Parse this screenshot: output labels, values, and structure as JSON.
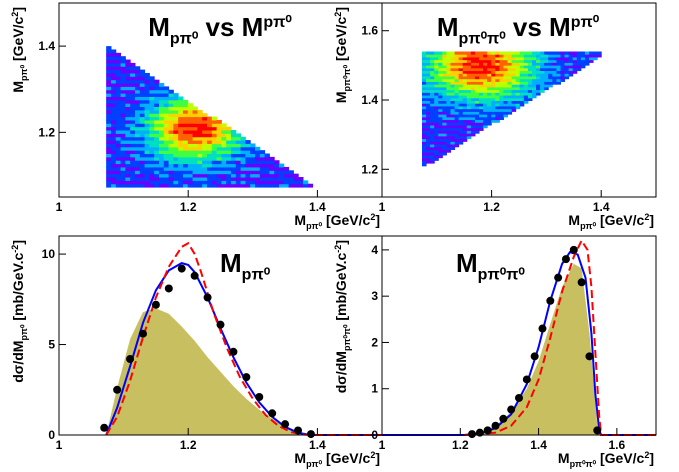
{
  "chart_data": [
    {
      "type": "heatmap",
      "title": "M_pπ0 vs M_pπ0",
      "title_parts": [
        "M",
        "pπ⁰",
        " vs M",
        "pπ⁰"
      ],
      "xlabel_parts": [
        "M",
        "pπ⁰",
        " [GeV/c",
        "2",
        "]"
      ],
      "ylabel_parts": [
        "M",
        "pπ⁰",
        " [GeV/c",
        "2",
        "]"
      ],
      "xlim": [
        1.0,
        1.5
      ],
      "ylim": [
        1.05,
        1.5
      ],
      "xticks": [
        {
          "v": 1,
          "t": "1"
        },
        {
          "v": 1.2,
          "t": "1.2"
        },
        {
          "v": 1.4,
          "t": "1.4"
        }
      ],
      "yticks": [
        {
          "v": 1.2,
          "t": "1.2"
        },
        {
          "v": 1.4,
          "t": "1.4"
        }
      ],
      "region": {
        "xmin": 1.073,
        "xmax": 1.4,
        "ymin": 1.073,
        "ymax": 1.4,
        "shape": "lower-left triangle"
      },
      "peak": {
        "x": 1.21,
        "y": 1.21
      },
      "colormap": [
        "#6a00ff",
        "#0040ff",
        "#00b0ff",
        "#00e0c0",
        "#40ff40",
        "#c0ff00",
        "#ffd000",
        "#ff6000",
        "#ff0000"
      ]
    },
    {
      "type": "heatmap",
      "title": "M_pπ0π0 vs M_pπ0",
      "title_parts": [
        "M",
        "pπ⁰π⁰",
        " vs M",
        "pπ⁰"
      ],
      "xlabel_parts": [
        "M",
        "pπ⁰",
        " [GeV/c",
        "2",
        "]"
      ],
      "ylabel_parts": [
        "M",
        "pπ⁰π⁰",
        " [GeV/c",
        "2",
        "]"
      ],
      "xlim": [
        1.0,
        1.5
      ],
      "ylim": [
        1.12,
        1.68
      ],
      "xticks": [
        {
          "v": 1,
          "t": "1"
        },
        {
          "v": 1.2,
          "t": "1.2"
        },
        {
          "v": 1.4,
          "t": "1.4"
        }
      ],
      "yticks": [
        {
          "v": 1.2,
          "t": "1.2"
        },
        {
          "v": 1.4,
          "t": "1.4"
        },
        {
          "v": 1.6,
          "t": "1.6"
        }
      ],
      "region": {
        "xmin": 1.073,
        "xmax": 1.4,
        "ymin": 1.21,
        "ymax": 1.54,
        "shape": "upper-left triangle"
      },
      "peak": {
        "x": 1.18,
        "y": 1.5
      },
      "colormap": [
        "#6a00ff",
        "#0040ff",
        "#00b0ff",
        "#00e0c0",
        "#40ff40",
        "#c0ff00",
        "#ffd000",
        "#ff6000",
        "#ff0000"
      ]
    },
    {
      "type": "line",
      "title": "M_pπ0",
      "title_parts": [
        "M",
        "pπ⁰"
      ],
      "xlabel_parts": [
        "M",
        "pπ⁰",
        " [GeV/c",
        "2",
        "]"
      ],
      "ylabel_parts": [
        "dσ/dM",
        "pπ⁰",
        " [mb/GeV.c",
        "-2",
        "]"
      ],
      "xlim": [
        1.0,
        1.5
      ],
      "ylim": [
        0,
        11
      ],
      "xticks": [
        {
          "v": 1,
          "t": "1"
        },
        {
          "v": 1.2,
          "t": "1.2"
        },
        {
          "v": 1.4,
          "t": "1.4"
        }
      ],
      "yticks": [
        {
          "v": 0,
          "t": "0"
        },
        {
          "v": 5,
          "t": "5"
        },
        {
          "v": 10,
          "t": "10"
        }
      ],
      "series": [
        {
          "role": "filled",
          "color": "#c8c060",
          "points": [
            [
              1.073,
              0
            ],
            [
              1.09,
              2.6
            ],
            [
              1.11,
              5.3
            ],
            [
              1.13,
              6.8
            ],
            [
              1.15,
              7.0
            ],
            [
              1.17,
              6.7
            ],
            [
              1.19,
              6.0
            ],
            [
              1.21,
              5.2
            ],
            [
              1.23,
              4.3
            ],
            [
              1.25,
              3.5
            ],
            [
              1.27,
              2.7
            ],
            [
              1.29,
              2.0
            ],
            [
              1.31,
              1.4
            ],
            [
              1.33,
              0.9
            ],
            [
              1.35,
              0.5
            ],
            [
              1.37,
              0.2
            ],
            [
              1.39,
              0.02
            ],
            [
              1.4,
              0
            ]
          ]
        },
        {
          "role": "line",
          "color": "#0000ff",
          "dash": false,
          "points": [
            [
              1.073,
              0
            ],
            [
              1.09,
              1.5
            ],
            [
              1.11,
              3.8
            ],
            [
              1.13,
              6.2
            ],
            [
              1.15,
              8.0
            ],
            [
              1.17,
              9.1
            ],
            [
              1.19,
              9.5
            ],
            [
              1.2,
              9.4
            ],
            [
              1.21,
              9.0
            ],
            [
              1.23,
              7.6
            ],
            [
              1.25,
              5.9
            ],
            [
              1.27,
              4.3
            ],
            [
              1.29,
              2.9
            ],
            [
              1.31,
              1.8
            ],
            [
              1.33,
              1.0
            ],
            [
              1.35,
              0.45
            ],
            [
              1.37,
              0.12
            ],
            [
              1.39,
              0.0
            ],
            [
              1.42,
              0
            ],
            [
              1.5,
              0
            ]
          ]
        },
        {
          "role": "line",
          "color": "#ff0000",
          "dash": true,
          "points": [
            [
              1.073,
              0
            ],
            [
              1.09,
              1.0
            ],
            [
              1.11,
              3.0
            ],
            [
              1.13,
              5.4
            ],
            [
              1.15,
              7.6
            ],
            [
              1.17,
              9.3
            ],
            [
              1.19,
              10.4
            ],
            [
              1.2,
              10.6
            ],
            [
              1.21,
              10.0
            ],
            [
              1.22,
              9.0
            ],
            [
              1.24,
              6.7
            ],
            [
              1.26,
              4.8
            ],
            [
              1.28,
              3.2
            ],
            [
              1.3,
              2.0
            ],
            [
              1.32,
              1.1
            ],
            [
              1.34,
              0.5
            ],
            [
              1.36,
              0.15
            ],
            [
              1.38,
              0.02
            ],
            [
              1.4,
              0
            ],
            [
              1.5,
              0
            ]
          ]
        },
        {
          "role": "markers",
          "color": "#000000",
          "points": [
            [
              1.07,
              0.4
            ],
            [
              1.09,
              2.5
            ],
            [
              1.11,
              4.2
            ],
            [
              1.13,
              5.6
            ],
            [
              1.15,
              7.2
            ],
            [
              1.17,
              8.1
            ],
            [
              1.19,
              9.2
            ],
            [
              1.21,
              8.8
            ],
            [
              1.23,
              7.6
            ],
            [
              1.25,
              6.1
            ],
            [
              1.27,
              4.6
            ],
            [
              1.29,
              3.2
            ],
            [
              1.31,
              2.1
            ],
            [
              1.33,
              1.2
            ],
            [
              1.35,
              0.6
            ],
            [
              1.37,
              0.25
            ],
            [
              1.39,
              0.05
            ]
          ]
        }
      ]
    },
    {
      "type": "line",
      "title": "M_pπ0π0",
      "title_parts": [
        "M",
        "pπ⁰π⁰"
      ],
      "xlabel_parts": [
        "M",
        "pπ⁰π⁰",
        " [GeV/c",
        "2",
        "]"
      ],
      "ylabel_parts": [
        "dσ/dM",
        "pπ⁰π⁰",
        " [mb/GeV.c",
        "-2",
        "]"
      ],
      "xlim": [
        1.0,
        1.7
      ],
      "ylim": [
        0,
        4.3
      ],
      "xticks": [
        {
          "v": 1,
          "t": "1"
        },
        {
          "v": 1.2,
          "t": "1.2"
        },
        {
          "v": 1.4,
          "t": "1.4"
        },
        {
          "v": 1.6,
          "t": "1.6"
        }
      ],
      "yticks": [
        {
          "v": 0,
          "t": "0"
        },
        {
          "v": 1,
          "t": "1"
        },
        {
          "v": 2,
          "t": "2"
        },
        {
          "v": 3,
          "t": "3"
        },
        {
          "v": 4,
          "t": "4"
        }
      ],
      "series": [
        {
          "role": "filled",
          "color": "#c8c060",
          "points": [
            [
              1.21,
              0
            ],
            [
              1.25,
              0.05
            ],
            [
              1.29,
              0.2
            ],
            [
              1.33,
              0.5
            ],
            [
              1.37,
              1.0
            ],
            [
              1.4,
              1.6
            ],
            [
              1.43,
              2.4
            ],
            [
              1.46,
              3.2
            ],
            [
              1.49,
              3.7
            ],
            [
              1.51,
              3.6
            ],
            [
              1.53,
              2.2
            ],
            [
              1.55,
              0.2
            ],
            [
              1.56,
              0
            ]
          ]
        },
        {
          "role": "line",
          "color": "#0000ff",
          "dash": false,
          "points": [
            [
              1.0,
              0
            ],
            [
              1.21,
              0
            ],
            [
              1.25,
              0.03
            ],
            [
              1.29,
              0.15
            ],
            [
              1.33,
              0.45
            ],
            [
              1.37,
              1.1
            ],
            [
              1.4,
              1.9
            ],
            [
              1.43,
              2.9
            ],
            [
              1.46,
              3.7
            ],
            [
              1.48,
              3.95
            ],
            [
              1.5,
              3.9
            ],
            [
              1.52,
              3.4
            ],
            [
              1.535,
              2.2
            ],
            [
              1.545,
              0.9
            ],
            [
              1.555,
              0.1
            ],
            [
              1.56,
              0
            ],
            [
              1.7,
              0
            ]
          ]
        },
        {
          "role": "line",
          "color": "#ff0000",
          "dash": true,
          "points": [
            [
              1.21,
              0
            ],
            [
              1.29,
              0.05
            ],
            [
              1.33,
              0.2
            ],
            [
              1.37,
              0.6
            ],
            [
              1.4,
              1.2
            ],
            [
              1.43,
              2.1
            ],
            [
              1.46,
              3.1
            ],
            [
              1.49,
              3.85
            ],
            [
              1.51,
              4.2
            ],
            [
              1.525,
              4.0
            ],
            [
              1.535,
              3.2
            ],
            [
              1.545,
              1.8
            ],
            [
              1.555,
              0.4
            ],
            [
              1.56,
              0
            ],
            [
              1.7,
              0
            ]
          ]
        },
        {
          "role": "markers",
          "color": "#000000",
          "points": [
            [
              1.23,
              0.02
            ],
            [
              1.25,
              0.05
            ],
            [
              1.27,
              0.1
            ],
            [
              1.29,
              0.2
            ],
            [
              1.31,
              0.35
            ],
            [
              1.33,
              0.55
            ],
            [
              1.35,
              0.8
            ],
            [
              1.37,
              1.2
            ],
            [
              1.39,
              1.7
            ],
            [
              1.41,
              2.3
            ],
            [
              1.43,
              2.9
            ],
            [
              1.45,
              3.4
            ],
            [
              1.47,
              3.8
            ],
            [
              1.49,
              4.0
            ],
            [
              1.51,
              3.3
            ],
            [
              1.53,
              1.7
            ],
            [
              1.55,
              0.1
            ]
          ]
        }
      ]
    }
  ]
}
